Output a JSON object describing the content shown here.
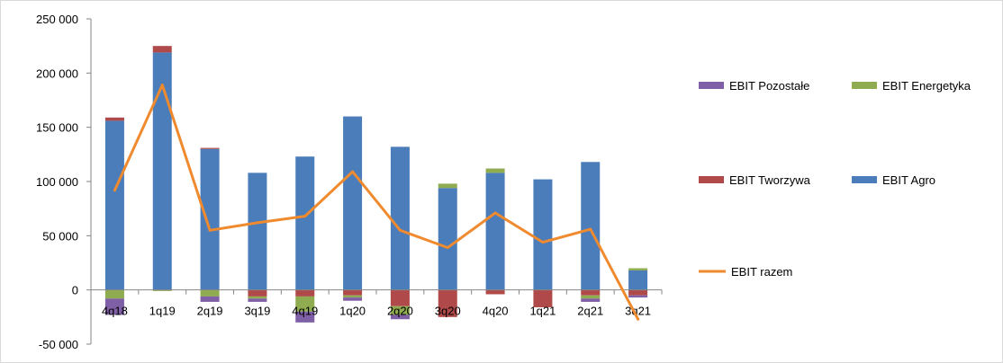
{
  "chart_data": {
    "type": "bar",
    "stacked": true,
    "categories": [
      "4q18",
      "1q19",
      "2q19",
      "3q19",
      "4q19",
      "1q20",
      "2q20",
      "3q20",
      "4q20",
      "1q21",
      "2q21",
      "3q21"
    ],
    "y_ticks": [
      "-50 000",
      "0",
      "50 000",
      "100 000",
      "150 000",
      "200 000",
      "250 000"
    ],
    "ylim": [
      -50000,
      250000
    ],
    "grid": false,
    "legend_position": "right",
    "series": [
      {
        "name": "EBIT Pozostałe",
        "kind": "bar",
        "color": "#7f5fa6",
        "values": [
          -15000,
          0,
          -5000,
          -3000,
          -10000,
          -3000,
          -4000,
          0,
          0,
          0,
          -3000,
          -2000
        ]
      },
      {
        "name": "EBIT Energetyka",
        "kind": "bar",
        "color": "#8fac50",
        "values": [
          -8000,
          -1000,
          -6000,
          -2000,
          -14000,
          -2000,
          -8000,
          4000,
          4000,
          0,
          -3000,
          2000
        ]
      },
      {
        "name": "EBIT Tworzywa",
        "kind": "bar",
        "color": "#b04a4a",
        "values": [
          3000,
          6000,
          1000,
          -6000,
          -6000,
          -5000,
          -15000,
          -25000,
          -4000,
          -16000,
          -5000,
          -5000
        ]
      },
      {
        "name": "EBIT Agro",
        "kind": "bar",
        "color": "#4a7dba",
        "values": [
          156000,
          219000,
          130000,
          108000,
          123000,
          160000,
          132000,
          94000,
          108000,
          102000,
          118000,
          18000
        ]
      },
      {
        "name": "EBIT razem",
        "kind": "line",
        "color": "#f08a2f",
        "values": [
          92000,
          189000,
          55000,
          62000,
          68000,
          109000,
          55000,
          39000,
          71000,
          44000,
          56000,
          -27000
        ]
      }
    ]
  }
}
